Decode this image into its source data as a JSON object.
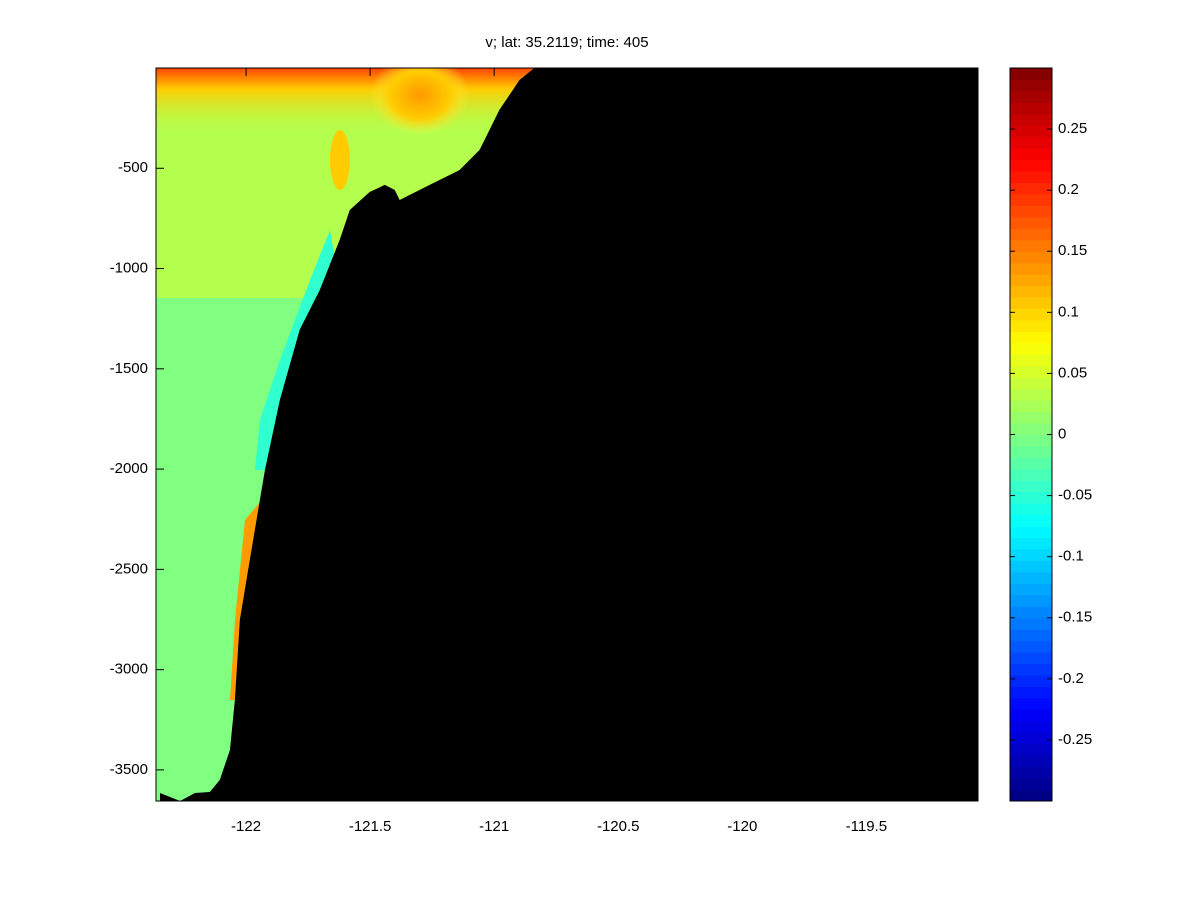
{
  "chart_data": {
    "type": "contour",
    "title": "v; lat: 35.2119; time: 405",
    "xlim": [
      -122.363,
      -119.05
    ],
    "xticks": [
      -122,
      -121.5,
      -121,
      -120.5,
      -120,
      -119.5
    ],
    "ylim": [
      -3655,
      0
    ],
    "yticks": [
      -3500,
      -3000,
      -2500,
      -2000,
      -1500,
      -1000,
      -500
    ],
    "colormap": "jet",
    "clim": [
      -0.3,
      0.3
    ],
    "cticks": [
      -0.25,
      -0.2,
      -0.15,
      -0.1,
      -0.05,
      0,
      0.05,
      0.1,
      0.15,
      0.2,
      0.25
    ],
    "mask_color": "#000000",
    "bathymetry": {
      "x": [
        -122.347,
        -122.266,
        -122.206,
        -122.146,
        -122.106,
        -122.065,
        -122.045,
        -122.025,
        -121.985,
        -121.924,
        -121.864,
        -121.784,
        -121.703,
        -121.623,
        -121.582,
        -121.502,
        -121.441,
        -121.401,
        -121.381,
        -121.341,
        -121.26,
        -121.14,
        -121.059,
        -120.979,
        -120.898,
        -120.838
      ],
      "y": [
        -3615,
        -3655,
        -3615,
        -3610,
        -3550,
        -3401,
        -3151,
        -2752,
        -2453,
        -2005,
        -1656,
        -1306,
        -1107,
        -858,
        -708,
        -618,
        -583,
        -608,
        -658,
        -633,
        -583,
        -509,
        -409,
        -209,
        -60,
        0
      ]
    }
  }
}
